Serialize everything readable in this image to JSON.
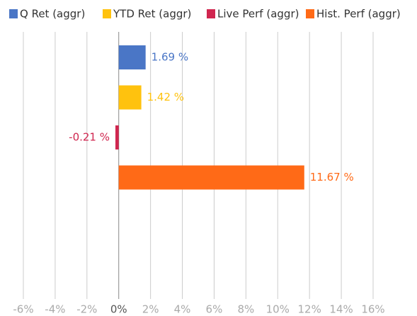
{
  "chart_data": {
    "type": "hbar",
    "series": [
      {
        "name": "Q Ret (aggr)",
        "color": "#4a76c6",
        "values": [
          1.69
        ],
        "value_labels": [
          "1.69 %"
        ]
      },
      {
        "name": "YTD Ret (aggr)",
        "color": "#ffc20e",
        "values": [
          1.42
        ],
        "value_labels": [
          "1.42 %"
        ]
      },
      {
        "name": "Live Perf (aggr)",
        "color": "#d0264f",
        "values": [
          -0.21
        ],
        "value_labels": [
          "-0.21 %"
        ]
      },
      {
        "name": "Hist. Perf (aggr)",
        "color": "#ff6a17",
        "values": [
          11.67
        ],
        "value_labels": [
          "11.67 %"
        ]
      }
    ],
    "xlim": [
      -6,
      16
    ],
    "xticks": [
      {
        "value": -6,
        "label": "-6%"
      },
      {
        "value": -4,
        "label": "-4%"
      },
      {
        "value": -2,
        "label": "-2%"
      },
      {
        "value": 0,
        "label": "0%"
      },
      {
        "value": 2,
        "label": "2%"
      },
      {
        "value": 4,
        "label": "4%"
      },
      {
        "value": 6,
        "label": "6%"
      },
      {
        "value": 8,
        "label": "8%"
      },
      {
        "value": 10,
        "label": "10%"
      },
      {
        "value": 12,
        "label": "12%"
      },
      {
        "value": 14,
        "label": "14%"
      },
      {
        "value": 16,
        "label": "16%"
      }
    ],
    "grid": true,
    "legend": "top"
  }
}
